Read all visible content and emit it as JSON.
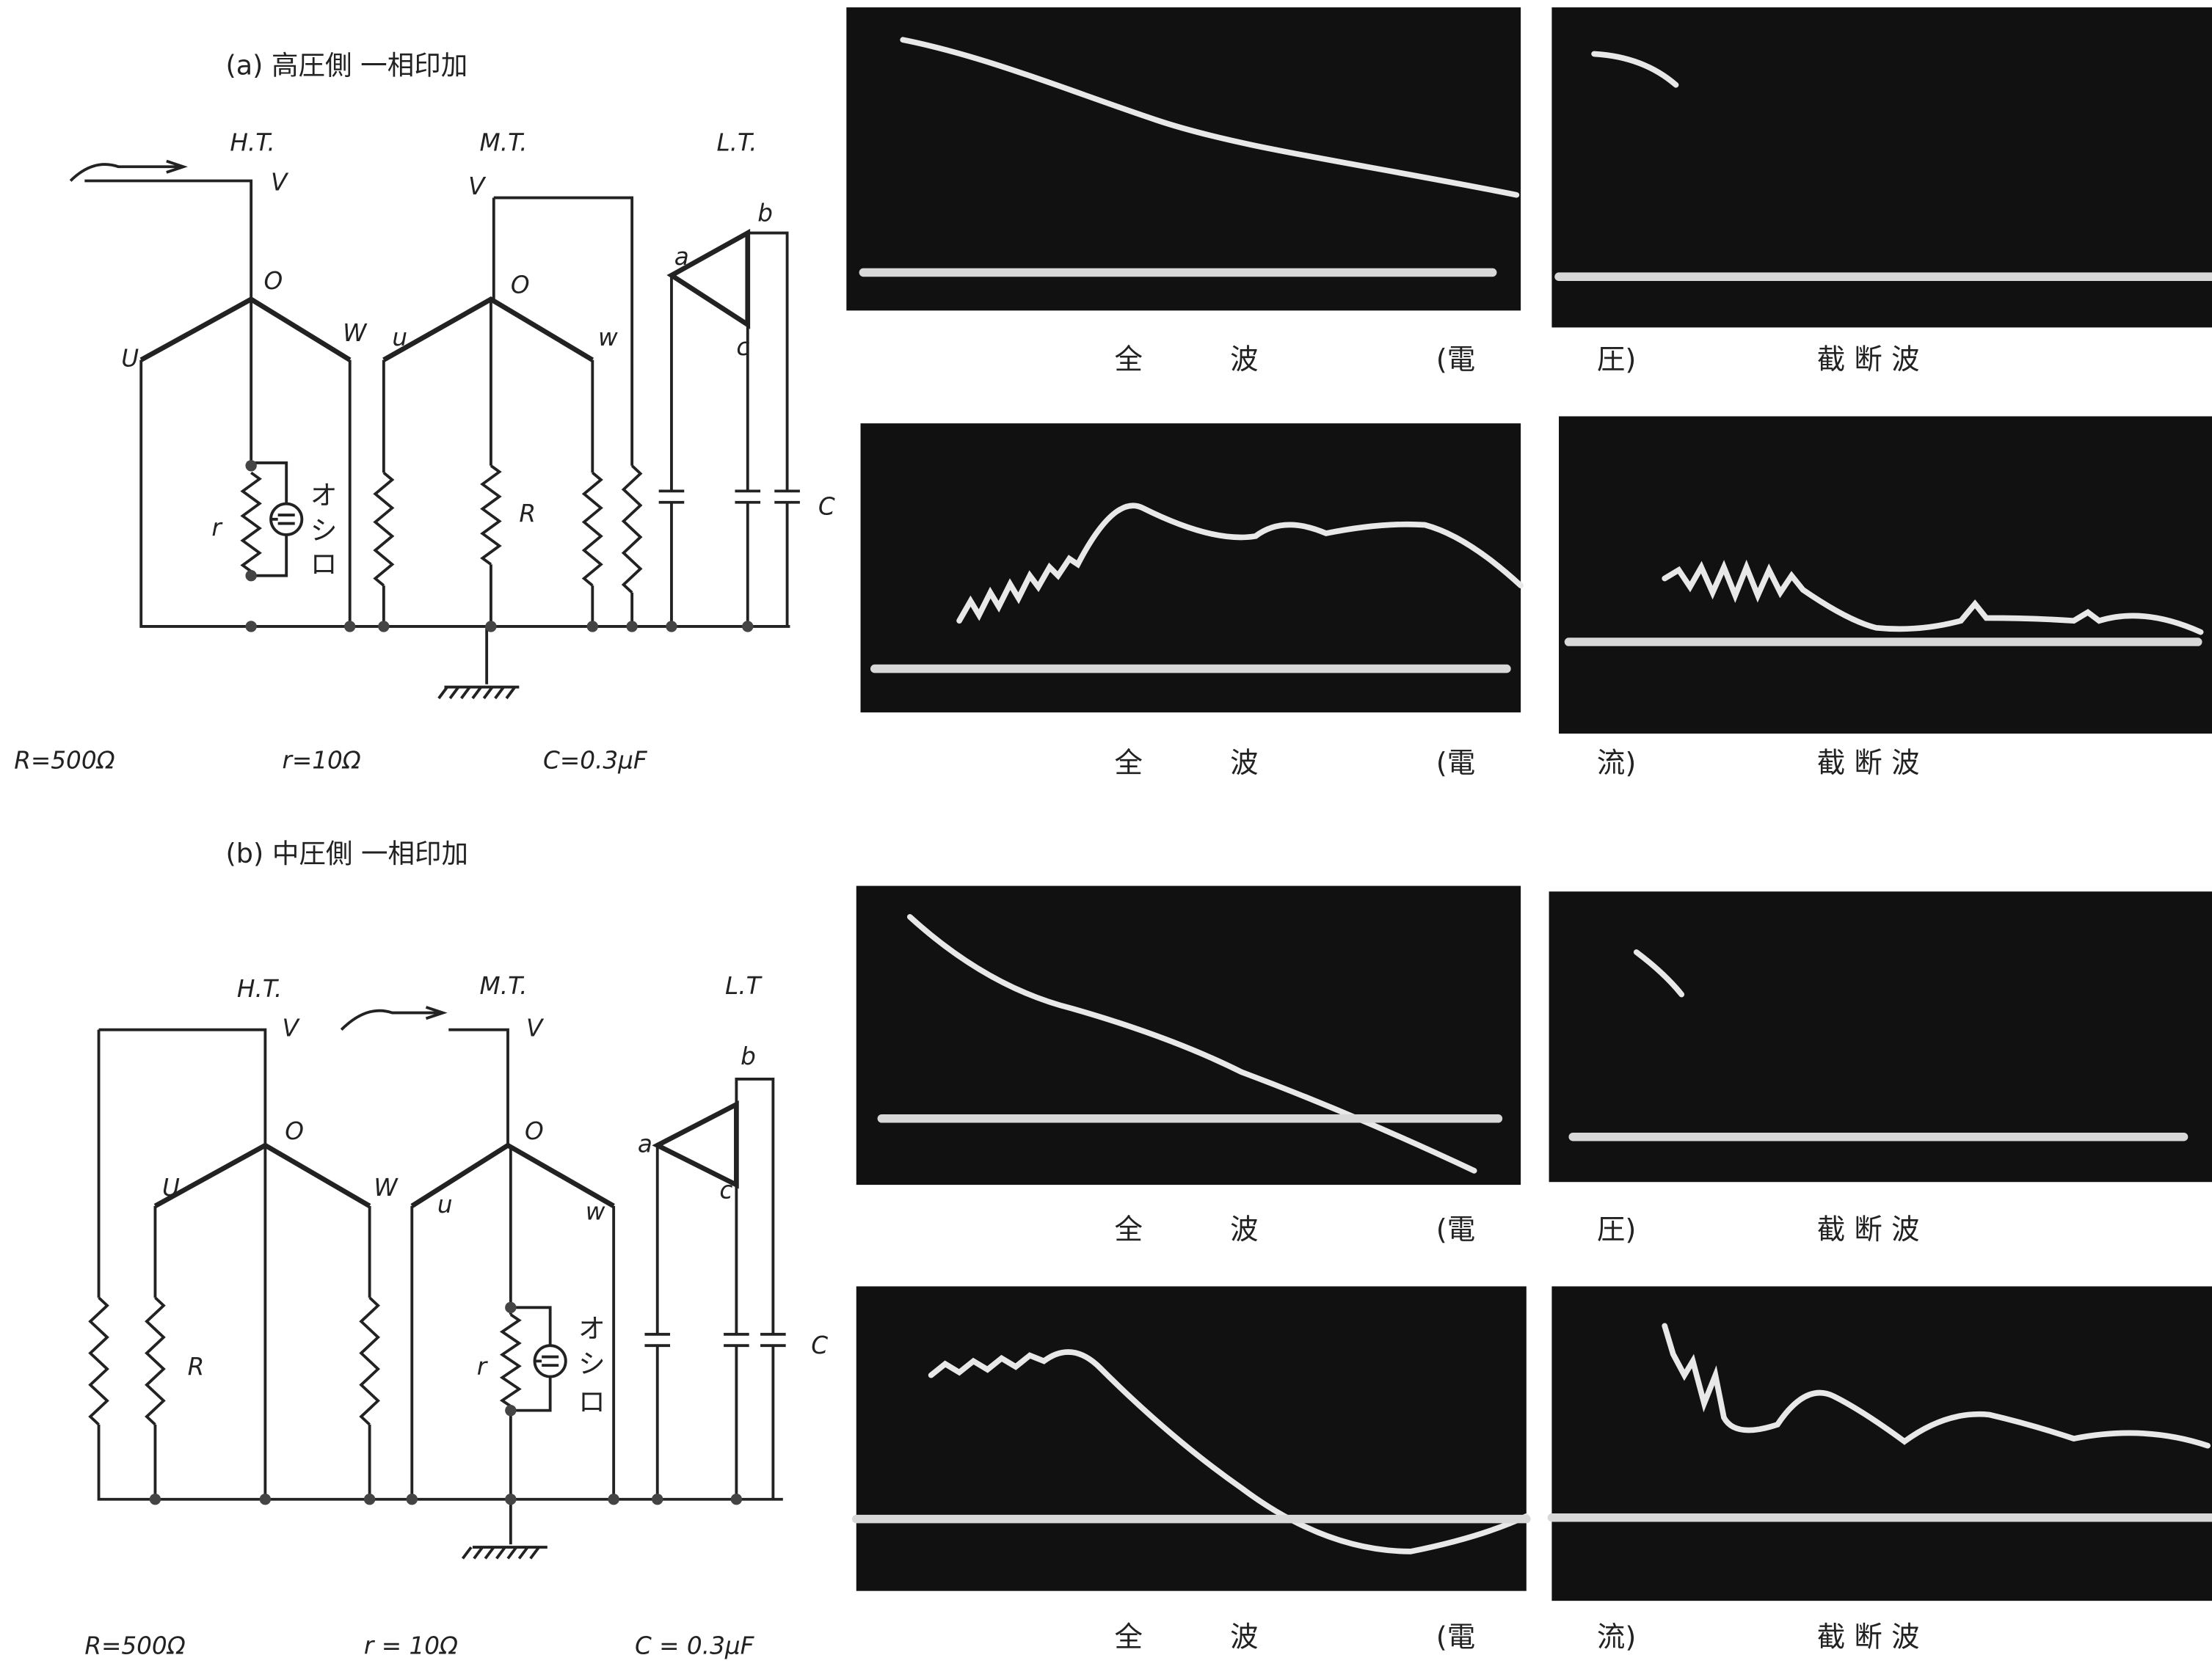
{
  "panels": [
    {
      "title": "(a) 高圧側 一相印加",
      "labels": [
        "H.T.",
        "M.T.",
        "L.T.",
        "V",
        "O",
        "U",
        "W",
        "V",
        "O",
        "u",
        "w",
        "a",
        "b",
        "c",
        "r",
        "R",
        "C",
        "オ",
        "シ",
        "ロ"
      ],
      "params": [
        "R=500Ω",
        "r=10Ω",
        "C=0.3μF"
      ]
    },
    {
      "title": "(b) 中圧側 一相印加",
      "labels": [
        "H.T.",
        "M.T.",
        "L.T",
        "V",
        "O",
        "U",
        "W",
        "V",
        "O",
        "u",
        "w",
        "a",
        "b",
        "c",
        "r",
        "R",
        "C",
        "オ",
        "シ",
        "ロ"
      ],
      "params": [
        "R=500Ω",
        "r = 10Ω",
        "C = 0.3μF"
      ]
    }
  ],
  "captions": [
    [
      "全",
      "波",
      "(電",
      "圧)",
      "截 断 波"
    ],
    [
      "全",
      "波",
      "(電",
      "流)",
      "截 断 波"
    ],
    [
      "全",
      "波",
      "(電",
      "圧)",
      "截 断 波"
    ],
    [
      "全",
      "波",
      "(電",
      "流)",
      "截 断 波"
    ]
  ]
}
